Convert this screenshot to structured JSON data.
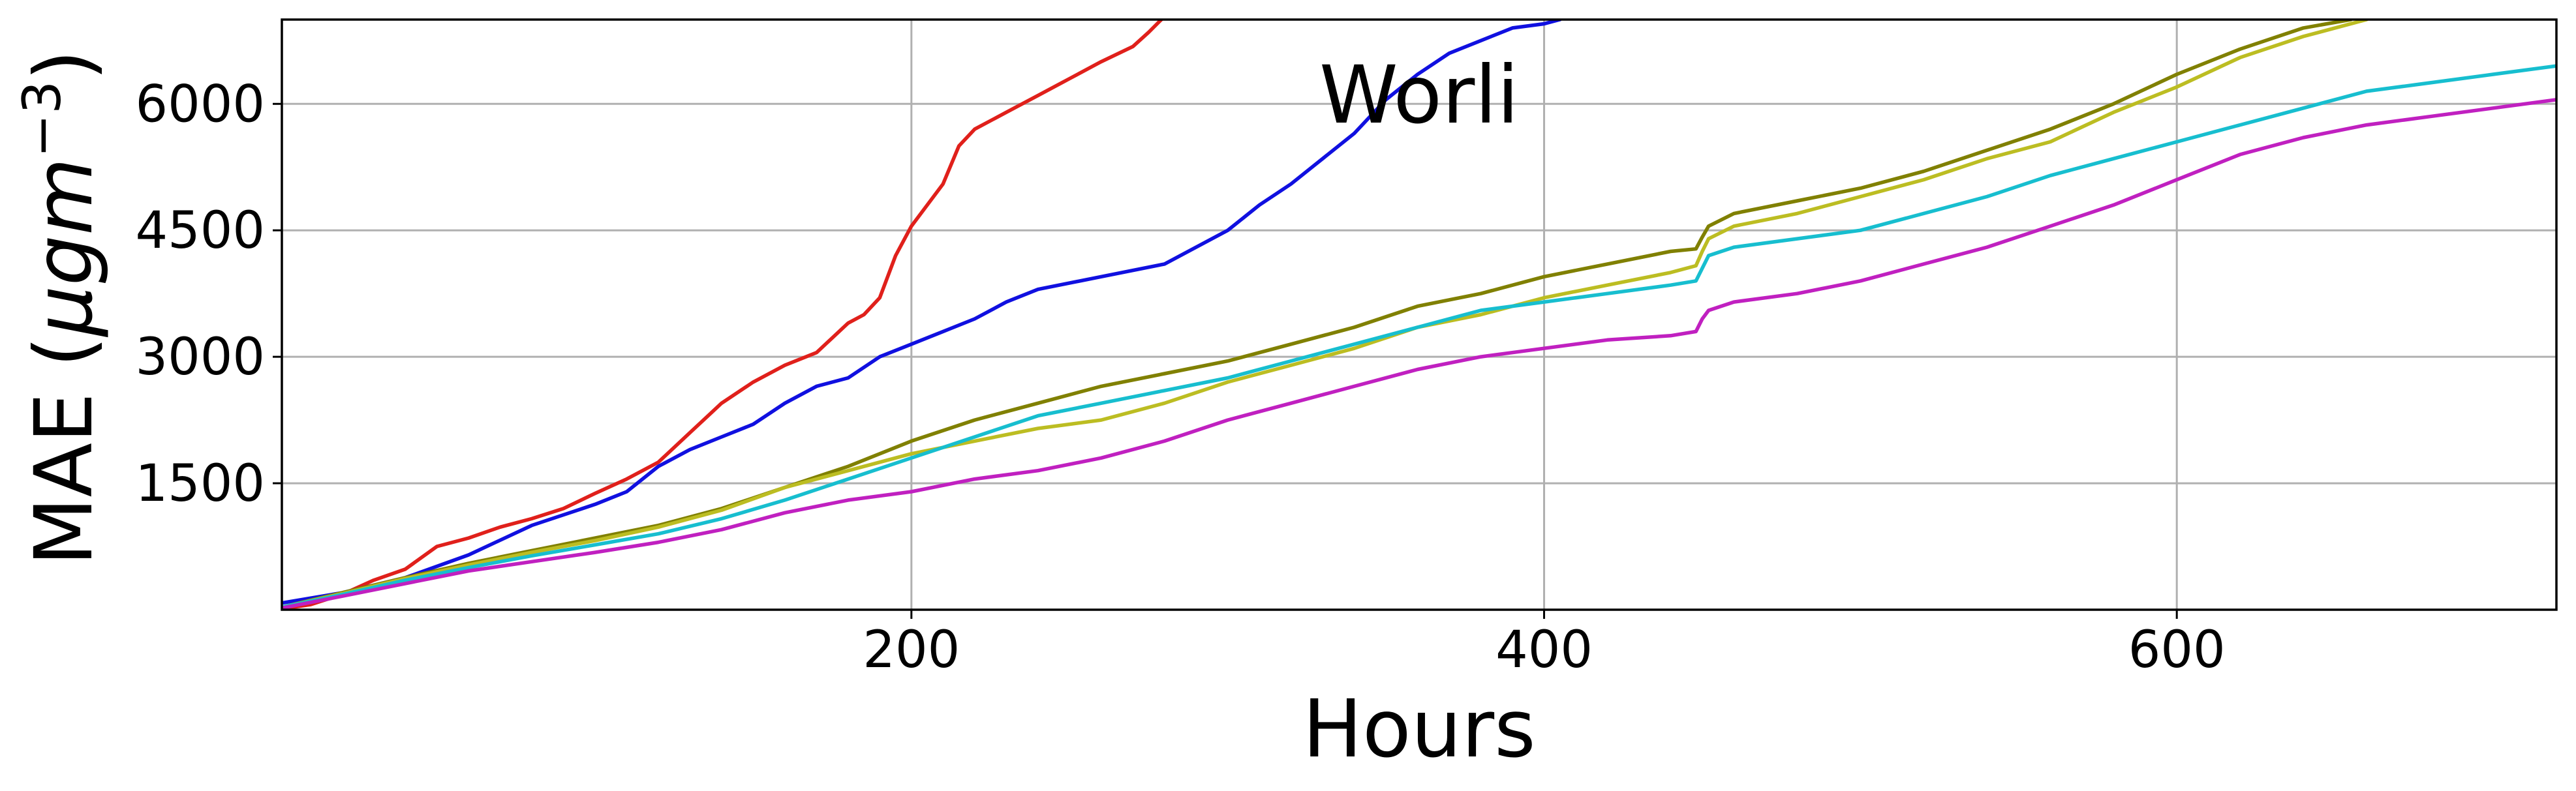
{
  "chart_data": {
    "type": "line",
    "title": "Worli",
    "xlabel": "Hours",
    "ylabel_main": "MAE (",
    "ylabel_mu": "μgm",
    "ylabel_exp": "−3",
    "ylabel_close": ")",
    "xlim": [
      1,
      720
    ],
    "ylim": [
      0,
      7000
    ],
    "x_ticks": [
      200,
      400,
      600
    ],
    "x_tick_labels": [
      "200",
      "400",
      "600"
    ],
    "y_ticks": [
      1500,
      3000,
      4500,
      6000
    ],
    "y_tick_labels": [
      "1500",
      "3000",
      "4500",
      "6000"
    ],
    "grid": true,
    "series": [
      {
        "color": "#e0201b",
        "x": [
          1,
          10,
          20,
          30,
          40,
          50,
          60,
          70,
          80,
          90,
          100,
          110,
          120,
          130,
          140,
          150,
          160,
          170,
          180,
          185,
          190,
          195,
          200,
          205,
          210,
          215,
          220,
          230,
          240,
          250,
          260,
          270,
          275,
          279
        ],
        "y": [
          10,
          60,
          180,
          350,
          480,
          750,
          850,
          980,
          1080,
          1200,
          1380,
          1550,
          1750,
          2100,
          2450,
          2700,
          2900,
          3050,
          3400,
          3500,
          3700,
          4200,
          4550,
          4800,
          5050,
          5500,
          5700,
          5900,
          6100,
          6300,
          6500,
          6680,
          6850,
          7000
        ]
      },
      {
        "color": "#1010e0",
        "x": [
          1,
          20,
          40,
          60,
          80,
          100,
          110,
          120,
          130,
          140,
          150,
          160,
          170,
          180,
          190,
          200,
          210,
          220,
          230,
          240,
          260,
          280,
          300,
          310,
          320,
          330,
          340,
          350,
          360,
          370,
          380,
          390,
          400,
          405
        ],
        "y": [
          80,
          200,
          380,
          650,
          1000,
          1250,
          1400,
          1700,
          1900,
          2050,
          2200,
          2450,
          2650,
          2750,
          3000,
          3150,
          3300,
          3450,
          3650,
          3800,
          3950,
          4100,
          4500,
          4800,
          5050,
          5350,
          5650,
          6050,
          6350,
          6600,
          6750,
          6900,
          6950,
          7000
        ]
      },
      {
        "color": "#808000",
        "x": [
          1,
          20,
          40,
          60,
          80,
          100,
          120,
          140,
          160,
          180,
          200,
          220,
          240,
          260,
          280,
          300,
          320,
          340,
          360,
          380,
          400,
          420,
          440,
          448,
          450,
          452,
          460,
          480,
          500,
          520,
          540,
          560,
          580,
          600,
          620,
          640,
          655
        ],
        "y": [
          30,
          200,
          380,
          550,
          700,
          850,
          1000,
          1200,
          1450,
          1700,
          2000,
          2250,
          2450,
          2650,
          2800,
          2950,
          3150,
          3350,
          3600,
          3750,
          3950,
          4100,
          4250,
          4280,
          4420,
          4550,
          4700,
          4850,
          5000,
          5200,
          5450,
          5700,
          6000,
          6350,
          6650,
          6900,
          7000
        ]
      },
      {
        "color": "#bcbd22",
        "x": [
          1,
          20,
          40,
          60,
          80,
          100,
          120,
          140,
          160,
          180,
          200,
          220,
          240,
          260,
          280,
          300,
          320,
          340,
          360,
          380,
          400,
          420,
          440,
          448,
          450,
          452,
          460,
          480,
          500,
          520,
          540,
          560,
          580,
          600,
          620,
          640,
          660
        ],
        "y": [
          30,
          190,
          370,
          530,
          680,
          820,
          980,
          1180,
          1450,
          1650,
          1850,
          2000,
          2150,
          2250,
          2450,
          2700,
          2900,
          3100,
          3350,
          3500,
          3700,
          3850,
          4000,
          4080,
          4250,
          4400,
          4550,
          4700,
          4900,
          5100,
          5350,
          5550,
          5900,
          6200,
          6550,
          6800,
          7000
        ]
      },
      {
        "color": "#17becf",
        "x": [
          1,
          20,
          40,
          60,
          80,
          100,
          120,
          140,
          160,
          180,
          200,
          220,
          240,
          260,
          280,
          300,
          320,
          340,
          360,
          380,
          400,
          420,
          440,
          448,
          450,
          452,
          460,
          480,
          500,
          520,
          540,
          560,
          580,
          600,
          620,
          640,
          660,
          680,
          700,
          720
        ],
        "y": [
          30,
          180,
          350,
          500,
          640,
          770,
          900,
          1080,
          1300,
          1550,
          1800,
          2050,
          2300,
          2450,
          2600,
          2750,
          2950,
          3150,
          3350,
          3550,
          3650,
          3750,
          3850,
          3900,
          4050,
          4200,
          4300,
          4400,
          4500,
          4700,
          4900,
          5150,
          5350,
          5550,
          5750,
          5950,
          6150,
          6250,
          6350,
          6450
        ]
      },
      {
        "color": "#c020c0",
        "x": [
          1,
          20,
          40,
          60,
          80,
          100,
          120,
          140,
          160,
          180,
          200,
          220,
          240,
          260,
          280,
          300,
          320,
          340,
          360,
          380,
          400,
          420,
          440,
          448,
          450,
          452,
          460,
          480,
          500,
          520,
          540,
          560,
          580,
          600,
          620,
          640,
          660,
          680,
          700,
          720
        ],
        "y": [
          20,
          160,
          310,
          460,
          570,
          680,
          800,
          950,
          1150,
          1300,
          1400,
          1550,
          1650,
          1800,
          2000,
          2250,
          2450,
          2650,
          2850,
          3000,
          3100,
          3200,
          3250,
          3300,
          3450,
          3550,
          3650,
          3750,
          3900,
          4100,
          4300,
          4550,
          4800,
          5100,
          5400,
          5600,
          5750,
          5850,
          5950,
          6050
        ]
      }
    ]
  }
}
